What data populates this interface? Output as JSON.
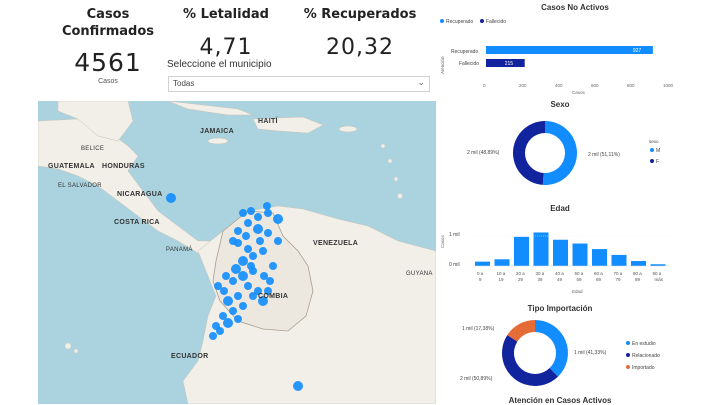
{
  "kpis": {
    "casos": {
      "title_line1": "Casos",
      "title_line2": "Confirmados",
      "value": "4561",
      "sub": "Casos"
    },
    "letalidad": {
      "title": "% Letalidad",
      "value": "4,71"
    },
    "recuperados": {
      "title": "% Recuperados",
      "value": "20,32"
    }
  },
  "slicer": {
    "label": "Seleccione el municipio",
    "value": "Todas"
  },
  "map": {
    "labels": {
      "jamaica": "JAMAICA",
      "haiti": "HAITÍ",
      "belice": "BELICE",
      "guatemala": "GUATEMALA",
      "honduras": "HONDURAS",
      "el_salvador": "EL SALVADOR",
      "nicaragua": "NICARAGUA",
      "costa_rica": "COSTA RICA",
      "panama": "PANAMÁ",
      "venezuela": "VENEZUELA",
      "colombia": "COMBIA",
      "ecuador": "ECUADOR",
      "guyana": "GUYANA"
    }
  },
  "casos_no_activos": {
    "title": "Casos No Activos",
    "legend": [
      "Recuperado",
      "Fallecido"
    ],
    "axis_title": "Atención",
    "x_axis_title": "Casos",
    "colors": {
      "recuperado": "#118dff",
      "fallecido": "#12239e"
    }
  },
  "sexo": {
    "title": "Sexo",
    "legend_title": "sexo",
    "label_left": "2 mil (48,89%)",
    "label_right": "2 mil (51,11%)",
    "legend": [
      "M",
      "F"
    ]
  },
  "edad": {
    "title": "Edad",
    "y_labels": [
      "1 mil",
      "0 mil"
    ],
    "y_axis_title": "Casos",
    "x_axis_title": "Edad"
  },
  "tipo_importacion": {
    "title": "Tipo Importación",
    "label_left_top": "1 mil (17,38%)",
    "label_right": "1 mil (41,33%)",
    "label_left_bottom": "2 mil (50,89%)",
    "legend": [
      "En estudio",
      "Relacionado",
      "Importado"
    ]
  },
  "atencion": {
    "title": "Atención en Casos Activos"
  },
  "chart_data": [
    {
      "type": "bar",
      "title": "Casos No Activos",
      "orientation": "horizontal",
      "categories": [
        "Recuperado",
        "Fallecido"
      ],
      "values": [
        927,
        215
      ],
      "x_ticks": [
        "0",
        "200",
        "400",
        "600",
        "800",
        "1000"
      ],
      "xlim": [
        0,
        1000
      ]
    },
    {
      "type": "pie",
      "title": "Sexo",
      "donut": true,
      "labels": [
        "M",
        "F"
      ],
      "values": [
        51.11,
        48.89
      ],
      "colors": [
        "#118dff",
        "#12239e"
      ]
    },
    {
      "type": "bar",
      "title": "Edad",
      "categories": [
        "0 a 9",
        "10 a 19",
        "20 a 29",
        "30 a 39",
        "40 a 49",
        "50 a 59",
        "60 a 69",
        "70 a 79",
        "80 a 89",
        "90 a más"
      ],
      "values": [
        150,
        230,
        1000,
        1150,
        900,
        770,
        580,
        380,
        170,
        60
      ],
      "ylim": [
        0,
        1200
      ],
      "color": "#118dff"
    },
    {
      "type": "pie",
      "title": "Tipo Importación",
      "donut": true,
      "labels": [
        "En estudio",
        "Relacionado",
        "Importado"
      ],
      "values": [
        41.33,
        50.89,
        17.38
      ],
      "colors": [
        "#118dff",
        "#12239e",
        "#e66c37"
      ]
    }
  ]
}
